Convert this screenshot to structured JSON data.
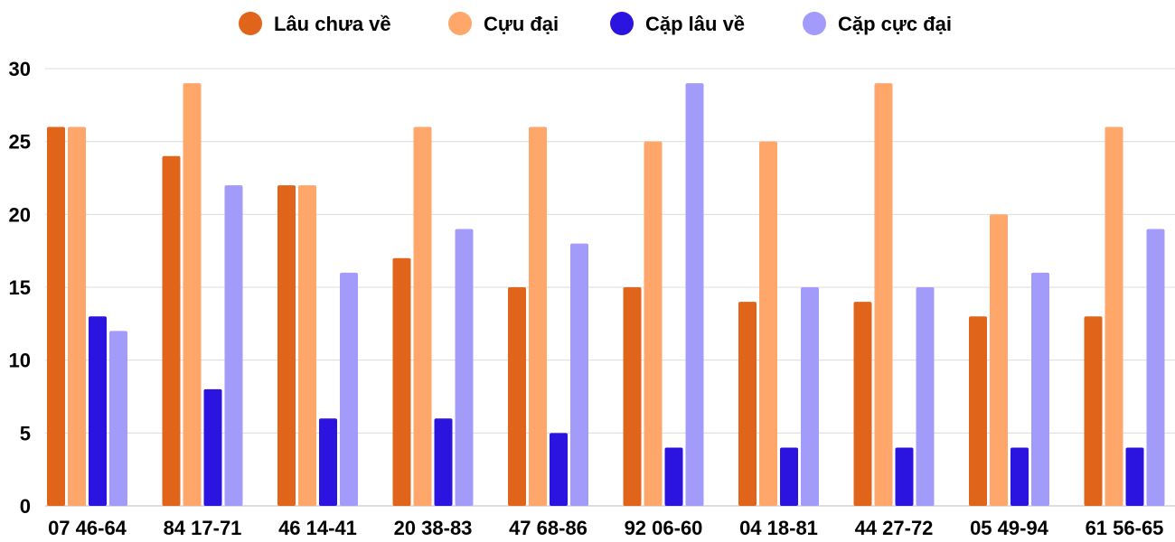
{
  "chart_data": {
    "type": "bar",
    "title": "",
    "xlabel": "",
    "ylabel": "",
    "ylim": [
      0,
      30
    ],
    "yticks": [
      0,
      5,
      10,
      15,
      20,
      25,
      30
    ],
    "grid": true,
    "legend_position": "top-center",
    "categories": [
      "07 46-64",
      "84 17-71",
      "46 14-41",
      "20 38-83",
      "47 68-86",
      "92 06-60",
      "04 18-81",
      "44 27-72",
      "05 49-94",
      "61 56-65"
    ],
    "series": [
      {
        "name": "Lâu chưa về",
        "color": "#e0651a",
        "values": [
          26,
          24,
          22,
          17,
          15,
          15,
          14,
          14,
          13,
          13
        ]
      },
      {
        "name": "Cựu đại",
        "color": "#ffa66b",
        "values": [
          26,
          29,
          22,
          26,
          26,
          25,
          25,
          29,
          20,
          26
        ]
      },
      {
        "name": "Cặp lâu về",
        "color": "#2b14e0",
        "values": [
          13,
          8,
          6,
          6,
          5,
          4,
          4,
          4,
          4,
          4
        ]
      },
      {
        "name": "Cặp cực đại",
        "color": "#a39bfa",
        "values": [
          12,
          22,
          16,
          19,
          18,
          29,
          15,
          15,
          16,
          19
        ]
      }
    ]
  }
}
